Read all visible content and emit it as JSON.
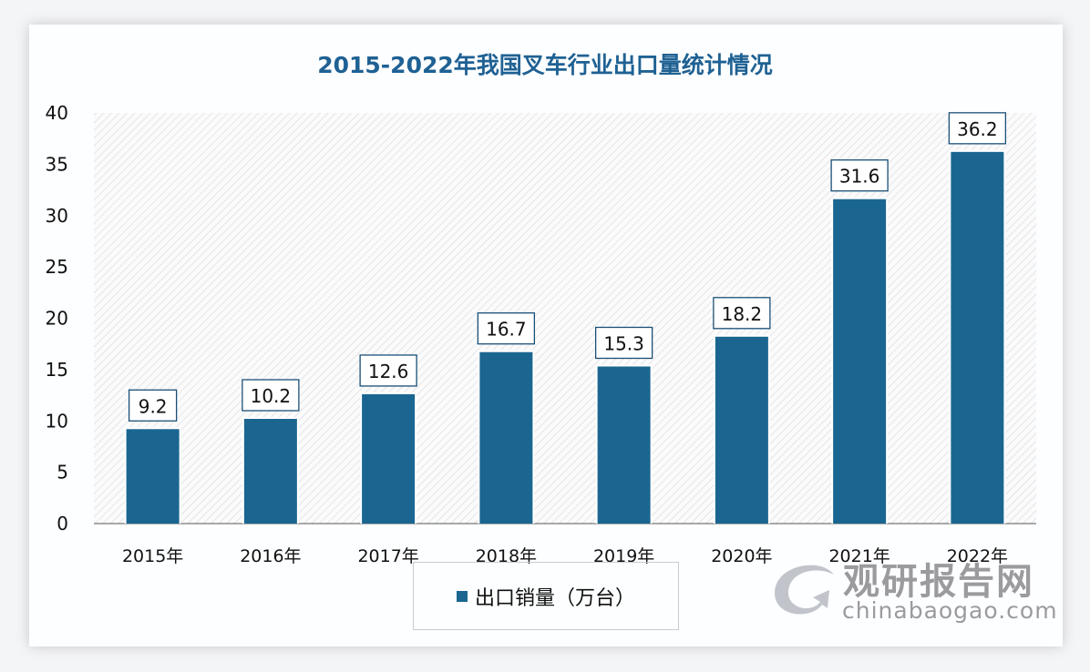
{
  "chart_data": {
    "type": "bar",
    "title": "2015-2022年我国叉车行业出口量统计情况",
    "categories": [
      "2015年",
      "2016年",
      "2017年",
      "2018年",
      "2019年",
      "2020年",
      "2021年",
      "2022年"
    ],
    "series": [
      {
        "name": "出口销量（万台）",
        "values": [
          9.2,
          10.2,
          12.6,
          16.7,
          15.3,
          18.2,
          31.6,
          36.2
        ]
      }
    ],
    "ylim": [
      0,
      40
    ],
    "yticks": [
      0,
      5,
      10,
      15,
      20,
      25,
      30,
      35,
      40
    ],
    "xlabel": "",
    "ylabel": "",
    "grid": false,
    "legend": "bottom",
    "bar_color": "#1a6690",
    "title_color": "#1f6193"
  },
  "watermark": {
    "cn": "观研报告网",
    "en": "chinabaogao.com"
  }
}
